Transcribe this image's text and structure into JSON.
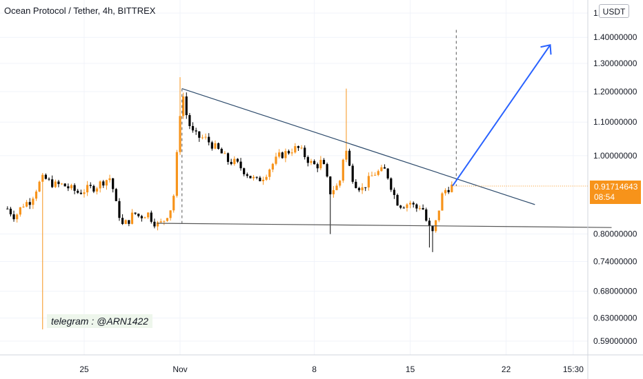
{
  "header": {
    "title": "Ocean Protocol / Tether, 4h, BITTREX",
    "currency": "USDT"
  },
  "price_tag": {
    "price": "0.91714643",
    "countdown": "08:54",
    "color": "#f7931a"
  },
  "annotation": {
    "text": "telegram : @ARN1422"
  },
  "colors": {
    "up": "#f7931a",
    "down": "#000000",
    "trendline": "#2c4a6b",
    "support": "#555555",
    "arrow": "#2962ff",
    "grid": "#f0f3fa"
  },
  "chart_data": {
    "type": "candlestick",
    "y_axis": {
      "scale": "log",
      "range": [
        0.55,
        1.55
      ],
      "ticks": [
        {
          "value": 1.5,
          "label": "1.5"
        },
        {
          "value": 1.4,
          "label": "1.40000000"
        },
        {
          "value": 1.3,
          "label": "1.30000000"
        },
        {
          "value": 1.2,
          "label": "1.20000000"
        },
        {
          "value": 1.1,
          "label": "1.10000000"
        },
        {
          "value": 1.0,
          "label": "1.00000000"
        },
        {
          "value": 0.8,
          "label": "0.80000000"
        },
        {
          "value": 0.74,
          "label": "0.74000000"
        },
        {
          "value": 0.68,
          "label": "0.68000000"
        },
        {
          "value": 0.63,
          "label": "0.63000000"
        },
        {
          "value": 0.59,
          "label": "0.59000000"
        }
      ]
    },
    "x_axis": {
      "ticks": [
        {
          "day": 25,
          "label": "25"
        },
        {
          "day": 30,
          "label": "Nov"
        },
        {
          "day": 37,
          "label": "8"
        },
        {
          "day": 42,
          "label": "15"
        },
        {
          "day": 47,
          "label": "22"
        },
        {
          "day": 50.5,
          "label": "15:30"
        }
      ]
    },
    "last_price": 0.91714643,
    "path": [
      [
        21.0,
        0.86
      ],
      [
        21.4,
        0.84
      ],
      [
        21.8,
        0.87
      ],
      [
        22.2,
        0.88
      ],
      [
        22.6,
        0.92
      ],
      [
        22.9,
        0.94
      ],
      [
        23.1,
        0.93
      ],
      [
        23.5,
        0.92
      ],
      [
        23.9,
        0.92
      ],
      [
        24.3,
        0.91
      ],
      [
        24.7,
        0.9
      ],
      [
        25.2,
        0.91
      ],
      [
        25.6,
        0.915
      ],
      [
        26.0,
        0.93
      ],
      [
        26.4,
        0.94
      ],
      [
        26.6,
        0.88
      ],
      [
        26.8,
        0.85
      ],
      [
        27.0,
        0.82
      ],
      [
        27.3,
        0.83
      ],
      [
        27.6,
        0.85
      ],
      [
        27.9,
        0.84
      ],
      [
        28.3,
        0.85
      ],
      [
        28.6,
        0.83
      ],
      [
        28.9,
        0.82
      ],
      [
        29.2,
        0.835
      ],
      [
        29.5,
        0.86
      ],
      [
        29.7,
        0.9
      ],
      [
        29.9,
        1.05
      ],
      [
        30.1,
        1.21
      ],
      [
        30.3,
        1.13
      ],
      [
        30.6,
        1.07
      ],
      [
        30.9,
        1.055
      ],
      [
        31.3,
        1.05
      ],
      [
        31.7,
        1.03
      ],
      [
        32.1,
        1.01
      ],
      [
        32.5,
        0.985
      ],
      [
        32.9,
        0.98
      ],
      [
        33.3,
        0.96
      ],
      [
        33.7,
        0.94
      ],
      [
        34.0,
        0.93
      ],
      [
        34.4,
        0.945
      ],
      [
        34.8,
        0.975
      ],
      [
        35.2,
        1.0
      ],
      [
        35.6,
        1.01
      ],
      [
        35.9,
        1.02
      ],
      [
        36.2,
        1.02
      ],
      [
        36.5,
        1.0
      ],
      [
        36.8,
        0.98
      ],
      [
        37.1,
        0.97
      ],
      [
        37.4,
        0.985
      ],
      [
        37.6,
        0.95
      ],
      [
        37.8,
        0.9
      ],
      [
        38.0,
        0.91
      ],
      [
        38.3,
        0.92
      ],
      [
        38.6,
        1.03
      ],
      [
        38.9,
        0.95
      ],
      [
        39.2,
        0.92
      ],
      [
        39.5,
        0.91
      ],
      [
        39.8,
        0.93
      ],
      [
        40.1,
        0.95
      ],
      [
        40.4,
        0.955
      ],
      [
        40.7,
        0.96
      ],
      [
        40.9,
        0.935
      ],
      [
        41.1,
        0.9
      ],
      [
        41.4,
        0.87
      ],
      [
        41.7,
        0.87
      ],
      [
        42.0,
        0.875
      ],
      [
        42.3,
        0.86
      ],
      [
        42.6,
        0.87
      ],
      [
        42.9,
        0.82
      ],
      [
        43.2,
        0.8
      ],
      [
        43.5,
        0.86
      ],
      [
        43.7,
        0.9
      ],
      [
        43.9,
        0.91
      ],
      [
        44.2,
        0.917
      ]
    ],
    "trendlines": [
      {
        "name": "upper",
        "from": [
          30.1,
          1.21
        ],
        "to": [
          48.5,
          0.87
        ]
      },
      {
        "name": "lower",
        "from": [
          28.8,
          0.825
        ],
        "to": [
          52.5,
          0.815
        ]
      }
    ]
  }
}
